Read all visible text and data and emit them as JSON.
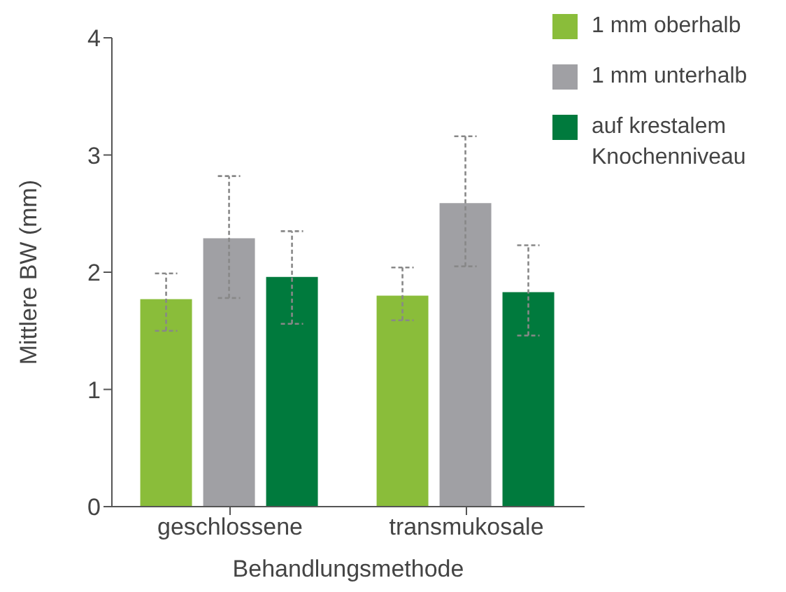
{
  "chart_data": {
    "type": "bar",
    "xlabel": "Behandlungsmethode",
    "ylabel": "Mittlere BW (mm)",
    "categories": [
      "geschlossene",
      "transmukosale"
    ],
    "series": [
      {
        "name": "1 mm oberhalb",
        "color": "#8abd3a",
        "values": [
          1.77,
          1.8
        ],
        "errors": [
          [
            1.5,
            1.99
          ],
          [
            1.59,
            2.04
          ]
        ]
      },
      {
        "name": "1 mm unterhalb",
        "color": "#a0a0a4",
        "values": [
          2.29,
          2.59
        ],
        "errors": [
          [
            1.78,
            2.82
          ],
          [
            2.05,
            3.16
          ]
        ]
      },
      {
        "name": "auf krestalem Knochenniveau",
        "color": "#007a3d",
        "values": [
          1.96,
          1.83
        ],
        "errors": [
          [
            1.56,
            2.35
          ],
          [
            1.46,
            2.23
          ]
        ]
      }
    ],
    "ylim": [
      0,
      4
    ],
    "yticks": [
      0,
      1,
      2,
      3,
      4
    ],
    "grid": false,
    "legend": "top right"
  }
}
